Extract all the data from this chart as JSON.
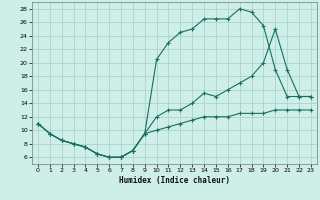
{
  "xlabel": "Humidex (Indice chaleur)",
  "background_color": "#ceeee8",
  "grid_color": "#aad4ce",
  "line_color": "#1a6e62",
  "xlim": [
    -0.5,
    23.5
  ],
  "ylim": [
    5,
    29
  ],
  "xticks": [
    0,
    1,
    2,
    3,
    4,
    5,
    6,
    7,
    8,
    9,
    10,
    11,
    12,
    13,
    14,
    15,
    16,
    17,
    18,
    19,
    20,
    21,
    22,
    23
  ],
  "yticks": [
    6,
    8,
    10,
    12,
    14,
    16,
    18,
    20,
    22,
    24,
    26,
    28
  ],
  "line1_x": [
    0,
    1,
    2,
    3,
    4,
    5,
    6,
    7,
    8,
    9,
    10,
    11,
    12,
    13,
    14,
    15,
    16,
    17,
    18,
    19,
    20,
    21,
    22,
    23
  ],
  "line1_y": [
    11,
    9.5,
    8.5,
    8,
    7.5,
    6.5,
    6,
    6,
    7,
    9.5,
    10,
    10.5,
    11,
    11.5,
    12,
    12,
    12,
    12.5,
    12.5,
    12.5,
    13,
    13,
    13,
    13
  ],
  "line2_x": [
    0,
    1,
    2,
    3,
    4,
    5,
    6,
    7,
    8,
    9,
    10,
    11,
    12,
    13,
    14,
    15,
    16,
    17,
    18,
    19,
    20,
    21,
    22,
    23
  ],
  "line2_y": [
    11,
    9.5,
    8.5,
    8,
    7.5,
    6.5,
    6,
    6,
    7,
    9.5,
    20.5,
    23,
    24.5,
    25,
    26.5,
    26.5,
    26.5,
    28,
    27.5,
    25.5,
    19,
    15,
    15,
    15
  ],
  "line3_x": [
    0,
    1,
    2,
    3,
    4,
    5,
    6,
    7,
    8,
    9,
    10,
    11,
    12,
    13,
    14,
    15,
    16,
    17,
    18,
    19,
    20,
    21,
    22,
    23
  ],
  "line3_y": [
    11,
    9.5,
    8.5,
    8,
    7.5,
    6.5,
    6,
    6,
    7,
    9.5,
    12,
    13,
    13,
    14,
    15.5,
    15,
    16,
    17,
    18,
    20,
    25,
    19,
    15,
    15
  ]
}
